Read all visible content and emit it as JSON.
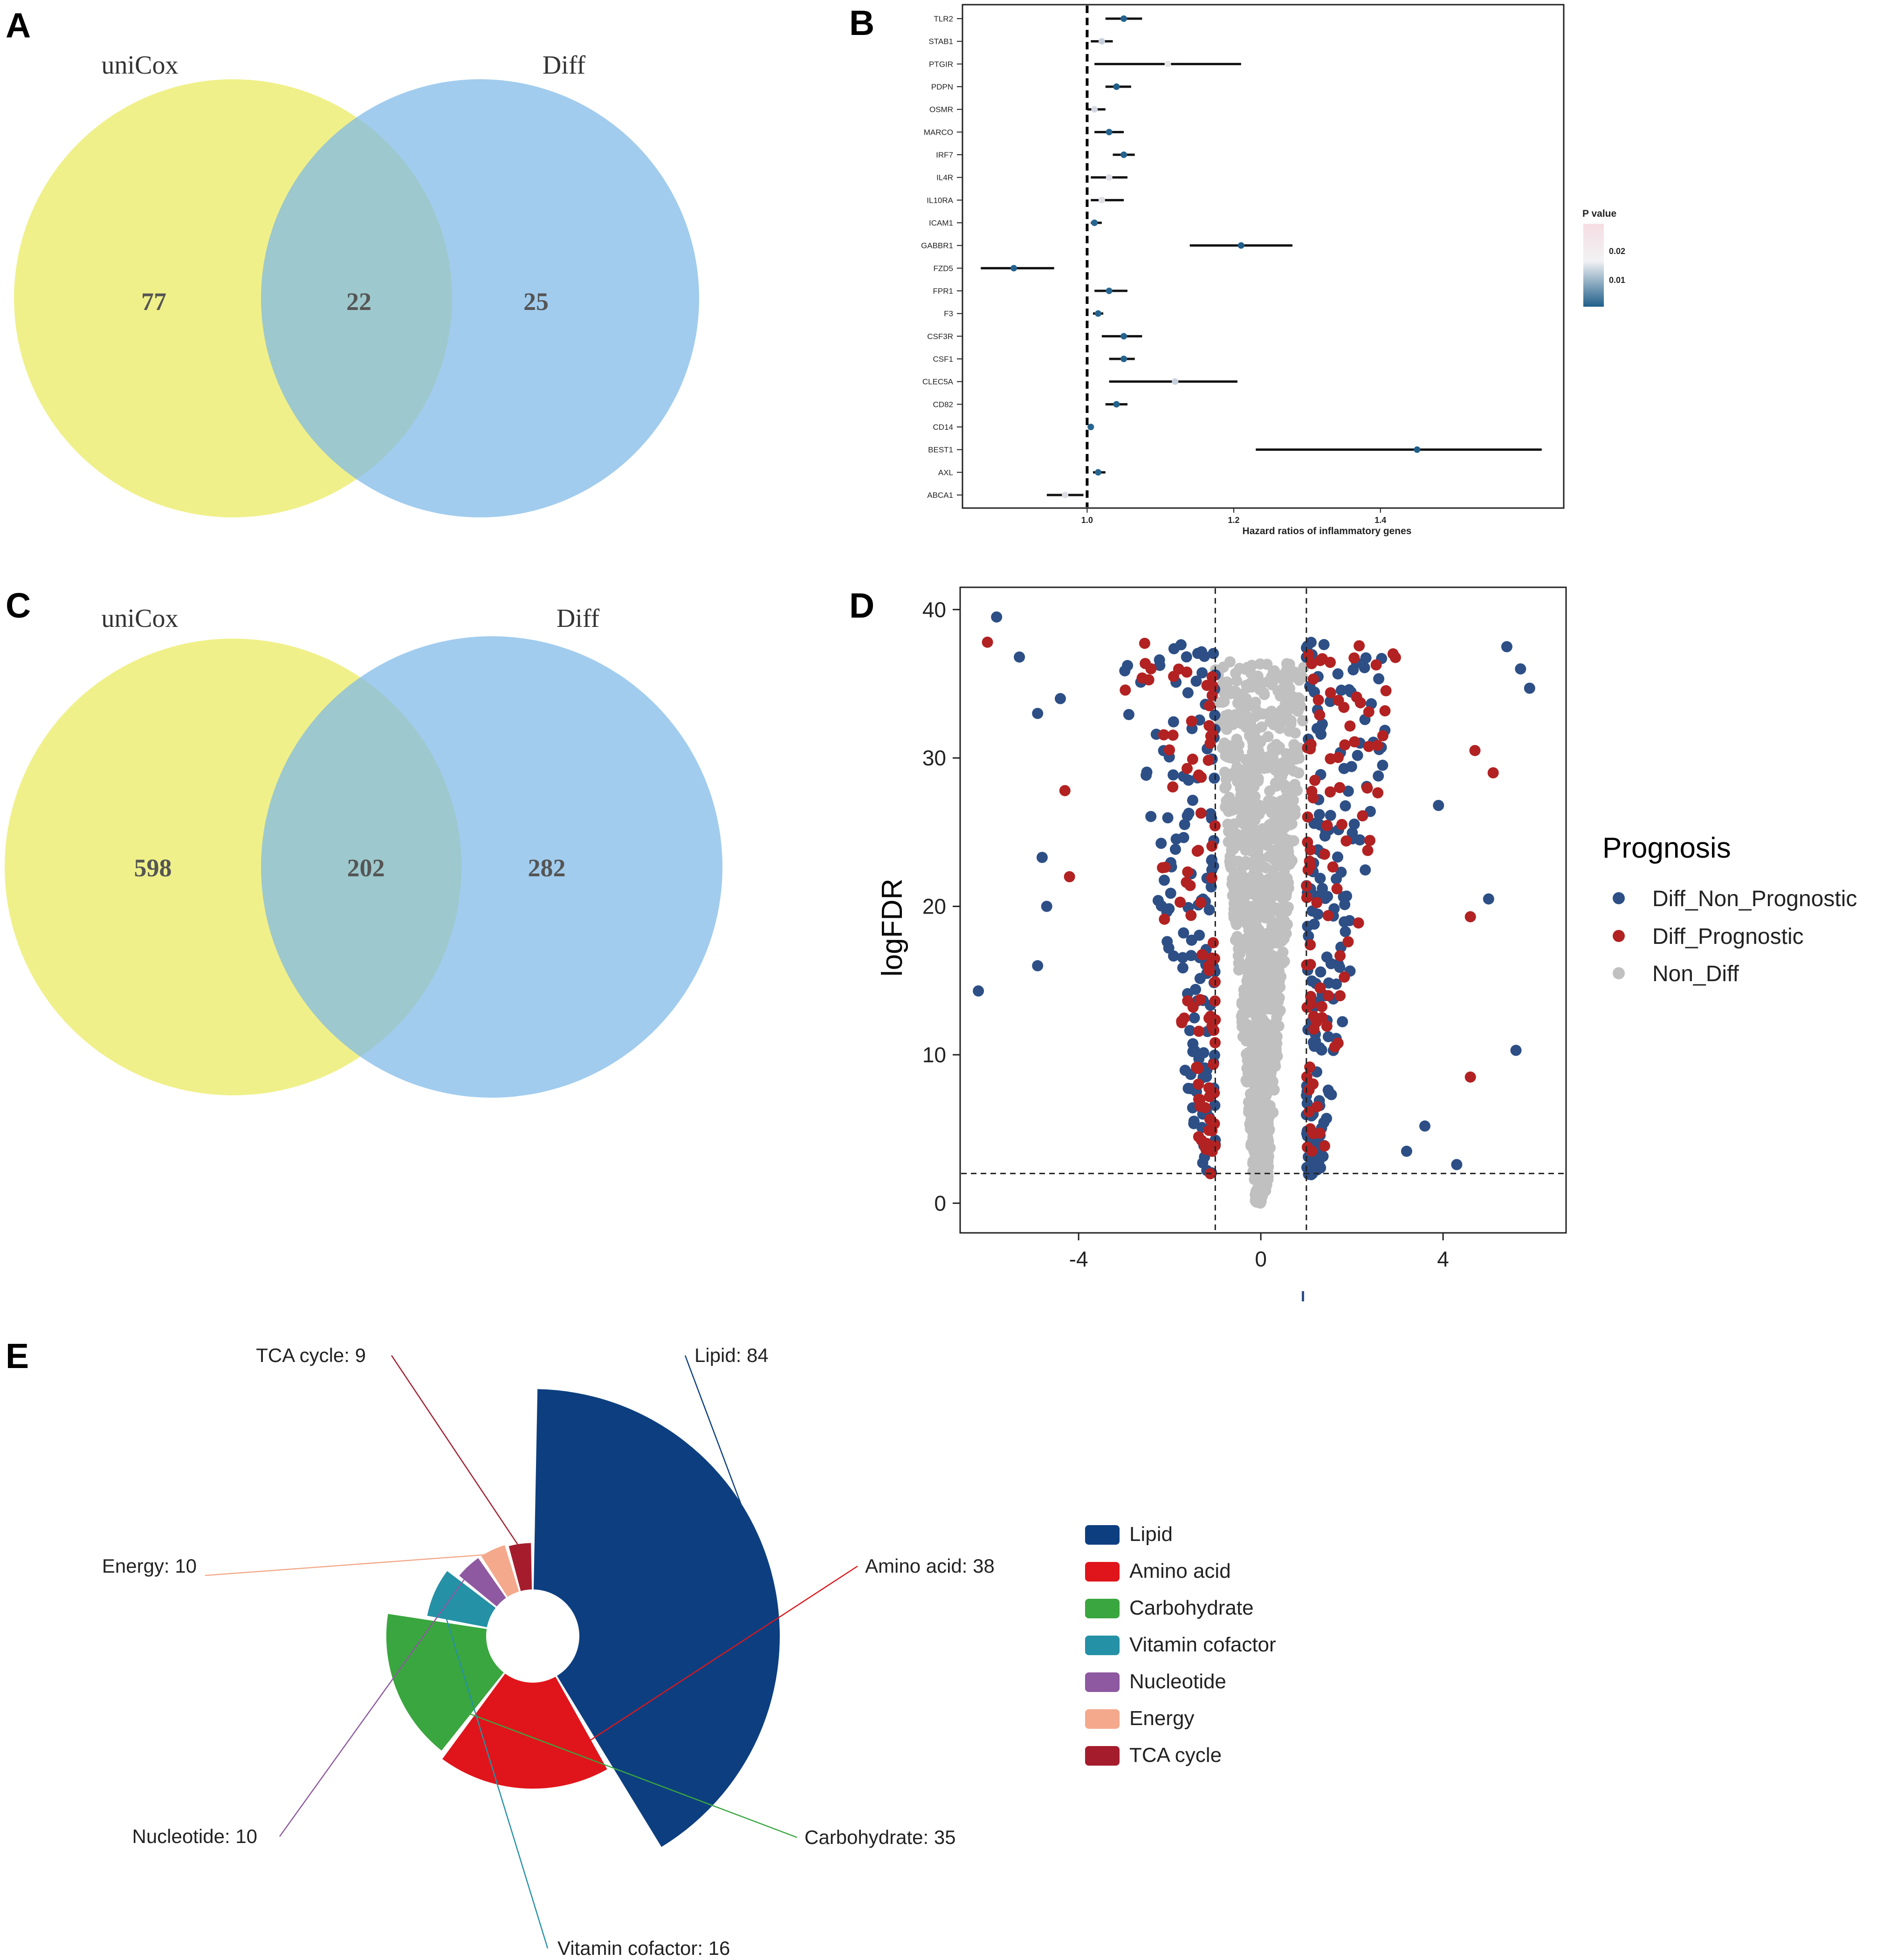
{
  "panels": {
    "A": "A",
    "B": "B",
    "C": "C",
    "D": "D",
    "E": "E"
  },
  "colors": {
    "venn_left": "#f0f08a",
    "venn_right": "#7db9e8",
    "venn_overlap": "#8ac4bb",
    "diff_non_prog": "#2d4f86",
    "diff_prog": "#b22222",
    "non_diff": "#c0c0c0",
    "pval_high": "#f5dde3",
    "pval_low": "#1f5f8a"
  },
  "chart_data": [
    {
      "type": "venn",
      "panel": "A",
      "sets": [
        "uniCox",
        "Diff"
      ],
      "values": {
        "left_only": "77",
        "overlap": "22",
        "right_only": "25"
      }
    },
    {
      "type": "forest",
      "panel": "B",
      "genes": [
        "TLR2",
        "STAB1",
        "PTGIR",
        "PDPN",
        "OSMR",
        "MARCO",
        "IRF7",
        "IL4R",
        "IL10RA",
        "ICAM1",
        "GABBR1",
        "FZD5",
        "FPR1",
        "F3",
        "CSF3R",
        "CSF1",
        "CLEC5A",
        "CD82",
        "CD14",
        "BEST1",
        "AXL",
        "ABCA1"
      ],
      "hr": [
        1.05,
        1.02,
        1.11,
        1.04,
        1.01,
        1.03,
        1.05,
        1.03,
        1.02,
        1.01,
        1.21,
        0.9,
        1.03,
        1.015,
        1.05,
        1.05,
        1.12,
        1.04,
        1.005,
        1.45,
        1.015,
        0.97
      ],
      "lower": [
        1.025,
        1.005,
        1.01,
        1.025,
        1.0,
        1.01,
        1.035,
        1.005,
        1.005,
        1.005,
        1.14,
        0.855,
        1.01,
        1.008,
        1.02,
        1.03,
        1.03,
        1.025,
        1.002,
        1.23,
        1.008,
        0.945
      ],
      "upper": [
        1.075,
        1.035,
        1.21,
        1.06,
        1.025,
        1.05,
        1.065,
        1.055,
        1.05,
        1.02,
        1.28,
        0.955,
        1.055,
        1.022,
        1.075,
        1.065,
        1.205,
        1.055,
        1.008,
        1.62,
        1.025,
        0.995
      ],
      "pvalue": [
        0.005,
        0.015,
        0.022,
        0.004,
        0.018,
        0.006,
        0.005,
        0.02,
        0.02,
        0.006,
        0.004,
        0.005,
        0.007,
        0.006,
        0.006,
        0.005,
        0.015,
        0.005,
        0.006,
        0.004,
        0.006,
        0.02
      ],
      "xlim": [
        0.83,
        1.65
      ],
      "xticks": [
        1.0,
        1.2,
        1.4
      ],
      "xtick_labels": [
        "1.0",
        "1.2",
        "1.4"
      ],
      "reference": 1.0,
      "xlabel": "Hazard ratios of inflammatory genes",
      "legend_title": "P value",
      "legend_ticks": [
        "0.02",
        "0.01"
      ]
    },
    {
      "type": "venn",
      "panel": "C",
      "sets": [
        "uniCox",
        "Diff"
      ],
      "values": {
        "left_only": "598",
        "overlap": "202",
        "right_only": "282"
      }
    },
    {
      "type": "scatter",
      "panel": "D",
      "title": "",
      "xlabel": "",
      "ylabel": "logFDR",
      "xlim": [
        -6.6,
        6.7
      ],
      "ylim": [
        -2,
        41.5
      ],
      "xticks": [
        -4,
        0,
        4
      ],
      "yticks": [
        0,
        10,
        20,
        30,
        40
      ],
      "thresholds": {
        "x": [
          -1,
          1
        ],
        "y": 2
      },
      "legend_title": "Prognosis",
      "series": [
        {
          "name": "Diff_Non_Prognostic",
          "count": 300
        },
        {
          "name": "Diff_Prognostic",
          "count": 180
        },
        {
          "name": "Non_Diff",
          "count": 1100
        }
      ],
      "outlier_points": [
        {
          "x": -6.2,
          "y": 14.3,
          "s": 0
        },
        {
          "x": -5.8,
          "y": 39.5,
          "s": 0
        },
        {
          "x": -6.0,
          "y": 37.8,
          "s": 1
        },
        {
          "x": -5.3,
          "y": 36.8,
          "s": 0
        },
        {
          "x": -4.9,
          "y": 33.0,
          "s": 0
        },
        {
          "x": -4.8,
          "y": 23.3,
          "s": 0
        },
        {
          "x": -4.7,
          "y": 20.0,
          "s": 0
        },
        {
          "x": -4.9,
          "y": 16.0,
          "s": 0
        },
        {
          "x": -4.4,
          "y": 34.0,
          "s": 0
        },
        {
          "x": -4.2,
          "y": 22.0,
          "s": 1
        },
        {
          "x": -4.3,
          "y": 27.8,
          "s": 1
        },
        {
          "x": 5.4,
          "y": 37.5,
          "s": 0
        },
        {
          "x": 5.9,
          "y": 34.7,
          "s": 0
        },
        {
          "x": 5.7,
          "y": 36.0,
          "s": 0
        },
        {
          "x": 5.6,
          "y": 10.3,
          "s": 0
        },
        {
          "x": 4.7,
          "y": 30.5,
          "s": 1
        },
        {
          "x": 5.1,
          "y": 29.0,
          "s": 1
        },
        {
          "x": 4.6,
          "y": 8.5,
          "s": 1
        },
        {
          "x": 4.3,
          "y": 2.6,
          "s": 0
        },
        {
          "x": 5.0,
          "y": 20.5,
          "s": 0
        },
        {
          "x": 4.6,
          "y": 19.3,
          "s": 1
        },
        {
          "x": 3.9,
          "y": 26.8,
          "s": 0
        },
        {
          "x": 3.2,
          "y": 3.5,
          "s": 0
        },
        {
          "x": 3.6,
          "y": 5.2,
          "s": 0
        }
      ]
    },
    {
      "type": "pie",
      "panel": "E",
      "style": "nightingale-rose",
      "categories": [
        "Lipid",
        "Amino acid",
        "Carbohydrate",
        "Vitamin cofactor",
        "Nucleotide",
        "Energy",
        "TCA cycle"
      ],
      "values": [
        84,
        38,
        35,
        16,
        10,
        10,
        9
      ],
      "labels": [
        "Lipid: 84",
        "Amino acid: 38",
        "Carbohydrate: 35",
        "Vitamin cofactor: 16",
        "Nucleotide: 10",
        "Energy: 10",
        "TCA cycle: 9"
      ],
      "colors": [
        "#0d3f80",
        "#e0151b",
        "#3aa63f",
        "#2491a6",
        "#8e59a0",
        "#f4a98c",
        "#a51d2d"
      ]
    }
  ]
}
